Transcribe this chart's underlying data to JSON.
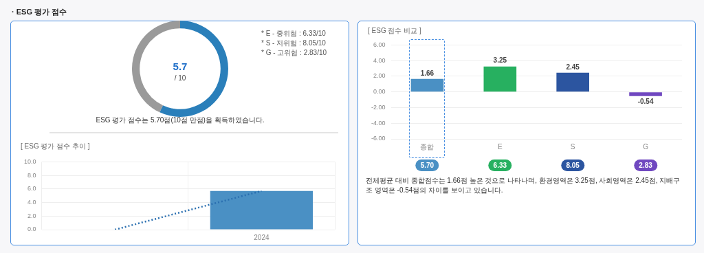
{
  "chart_data": [
    {
      "type": "donut",
      "title": "· ESG 평가 점수",
      "categories": [
        null,
        null
      ],
      "values": [
        57,
        43
      ],
      "colors": [
        "#2a7fba",
        "#9a9a9a"
      ],
      "annotations": [
        "5.7",
        "/ 10",
        "* E - 중위험 : 6.33/10",
        "* S - 저위험 : 8.05/10",
        "* G - 고위험 : 2.83/10",
        "ESG 평가 점수는 5.70점(10점 만점)을 획득하였습니다."
      ]
    },
    {
      "type": "bar",
      "title": "[ ESG 평가 점수 추이 ]",
      "categories": [
        null,
        "2024"
      ],
      "ylim": [
        0,
        10
      ],
      "yticks": [
        {
          "value": 0,
          "label": "0.0"
        },
        {
          "value": 2,
          "label": "2.0"
        },
        {
          "value": 4,
          "label": "4.0"
        },
        {
          "value": 6,
          "label": "6.0"
        },
        {
          "value": 8,
          "label": "8.0"
        },
        {
          "value": 10,
          "label": "10.0"
        }
      ],
      "grid": true,
      "series": [
        {
          "type": "bar",
          "color": "#4a90c4",
          "values": [
            null,
            5.7
          ]
        },
        {
          "type": "line",
          "color": "#2a6fb0",
          "values": [
            0,
            5.7
          ],
          "line_style": "dotted",
          "marker": "none"
        }
      ]
    },
    {
      "type": "bar",
      "title": "[ ESG 점수 비교 ]",
      "categories": [
        "종합",
        "E",
        "S",
        "G"
      ],
      "values": [
        1.66,
        3.25,
        2.45,
        -0.54
      ],
      "colors": [
        "#4a90c4",
        "#27b060",
        "#2c55a0",
        "#7048c0"
      ],
      "data_labels": true,
      "grid": "y",
      "ylim": [
        -6,
        6
      ],
      "yticks": [
        {
          "value": -6,
          "label": "-6.00"
        },
        {
          "value": -4,
          "label": "-4.00"
        },
        {
          "value": -2,
          "label": "-2.00"
        },
        {
          "value": 0,
          "label": "0.00"
        },
        {
          "value": 2,
          "label": "2.00"
        },
        {
          "value": 4,
          "label": "4.00"
        },
        {
          "value": 6,
          "label": "6.00"
        }
      ],
      "annotations": [
        "5.70",
        "6.33",
        "8.05",
        "2.83",
        "전체평균 대비 종합점수는 1.66점 높은 것으로 나타나며, 환경영역은 3.25점, 사회영역은 2.45점, 지배구조 영역은 -0.54점의 차이를 보이고 있습니다."
      ]
    }
  ]
}
